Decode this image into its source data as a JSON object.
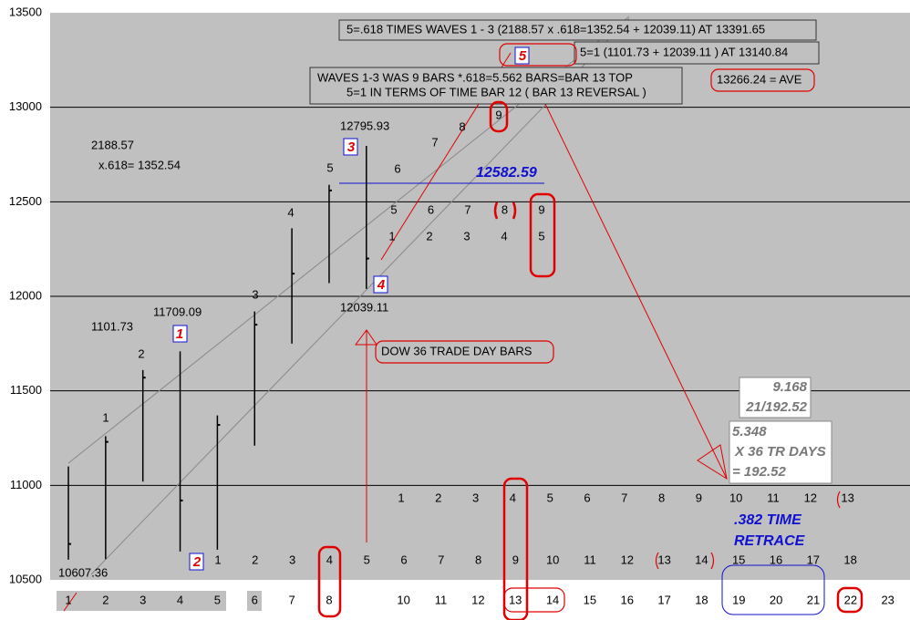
{
  "chart_data": {
    "type": "ohlc",
    "ylim": [
      10500,
      13500
    ],
    "yticks": [
      10500,
      11000,
      11500,
      12000,
      12500,
      13000,
      13500
    ],
    "grid": true,
    "color": "#000000",
    "categories": [
      "1",
      "2",
      "3",
      "4",
      "5",
      "6",
      "7",
      "8",
      null,
      "10",
      "11",
      "12",
      "13",
      "14",
      "15",
      "16",
      "17",
      "18",
      "19",
      "20",
      "21",
      "22",
      "23"
    ],
    "high": [
      11100,
      11260,
      11610,
      11709,
      11370,
      11920,
      12360,
      12590,
      12796,
      null,
      null,
      null,
      null,
      null,
      null,
      null,
      null,
      null,
      null,
      null,
      null,
      null,
      null
    ],
    "low": [
      10607,
      10610,
      11020,
      10650,
      10660,
      11210,
      11750,
      12070,
      12039,
      null,
      null,
      null,
      null,
      null,
      null,
      null,
      null,
      null,
      null,
      null,
      null,
      null,
      null
    ],
    "close": [
      10690,
      11230,
      11570,
      10920,
      11320,
      11850,
      12120,
      12560,
      12200,
      null,
      null,
      null,
      null,
      null,
      null,
      null,
      null,
      null,
      null,
      null,
      null,
      null,
      null
    ],
    "annotations": {
      "fib_box": "5=.618 TIMES WAVES 1 - 3 (2188.57 x .618=1352.54 + 12039.11) AT 13391.65",
      "equal_box": "5=1 (1101.73 + 12039.11 ) AT 13140.84",
      "time_box": [
        "WAVES 1-3 WAS 9 BARS *.618=5.562 BARS=BAR 13 TOP",
        "5=1 IN TERMS OF TIME BAR 12 ( BAR 13 REVERSAL )"
      ],
      "ave": "13266.24 = AVE",
      "bars_note": "DOW 36 TRADE DAY BARS",
      "ratio_box": [
        "9.168",
        "21/192.52"
      ],
      "days_box": [
        "5.348",
        "X 36 TR DAYS",
        "= 192.52"
      ],
      "retrace": [
        ".382 TIME",
        "RETRACE"
      ],
      "level": "12582.59",
      "wave1_len": [
        "2188.57",
        "x.618=  1352.54"
      ],
      "prices": {
        "high3": "12795.93",
        "low4": "12039.11",
        "high1": "11709.09",
        "len1": "1101.73",
        "low0": "10607.36"
      },
      "waves": [
        "1",
        "2",
        "3",
        "4",
        "5"
      ]
    },
    "counts": {
      "impulse": [
        "1",
        "2",
        "3",
        "4",
        "5"
      ],
      "upper": [
        "6",
        "7",
        "8",
        "9"
      ],
      "row_a": [
        "5",
        "6",
        "7",
        "8",
        "9"
      ],
      "row_b": [
        "1",
        "2",
        "3",
        "4",
        "5"
      ],
      "row_c": [
        "1",
        "2",
        "3",
        "4",
        "5",
        "6",
        "7",
        "8",
        "9",
        "10",
        "11",
        "12",
        "13"
      ],
      "row_d": [
        "1",
        "2",
        "3",
        "4",
        "5",
        "6",
        "7",
        "8",
        "9",
        "10",
        "11",
        "12",
        "13",
        "14",
        "15",
        "16",
        "17",
        "18"
      ]
    }
  }
}
